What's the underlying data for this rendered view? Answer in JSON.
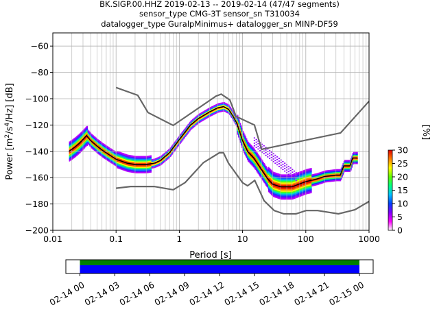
{
  "chart_data": {
    "type": "heatmap",
    "title_lines": [
      "BK.SIGP.00.HHZ   2019-02-13 -- 2019-02-14  (47/47 segments)",
      "sensor_type CMG-3T sensor_sn T310034",
      "datalogger_type GuralpMinimus+ datalogger_sn MINP-DF59"
    ],
    "xlabel": "Period [s]",
    "ylabel_parts": [
      "Power [m",
      "2",
      "/s",
      "4",
      "/Hz] [dB]"
    ],
    "x_scale": "log",
    "xlim": [
      0.01,
      1000
    ],
    "ylim": [
      -200,
      -50
    ],
    "x_ticks": [
      {
        "v": 0.01,
        "label": "0.01"
      },
      {
        "v": 0.1,
        "label": "0.1"
      },
      {
        "v": 1,
        "label": "1"
      },
      {
        "v": 10,
        "label": "10"
      },
      {
        "v": 100,
        "label": "100"
      },
      {
        "v": 1000,
        "label": "1000"
      }
    ],
    "y_ticks": [
      {
        "v": -60,
        "label": "−60"
      },
      {
        "v": -80,
        "label": "−80"
      },
      {
        "v": -100,
        "label": "−100"
      },
      {
        "v": -120,
        "label": "−120"
      },
      {
        "v": -140,
        "label": "−140"
      },
      {
        "v": -160,
        "label": "−160"
      },
      {
        "v": -180,
        "label": "−180"
      },
      {
        "v": -200,
        "label": "−200"
      }
    ],
    "grid": true,
    "noise_model_high": [
      [
        0.1,
        -91.5
      ],
      [
        0.22,
        -97.4
      ],
      [
        0.32,
        -110.5
      ],
      [
        0.8,
        -120.3
      ],
      [
        3.8,
        -98.0
      ],
      [
        4.6,
        -96.5
      ],
      [
        6.3,
        -101.0
      ],
      [
        7.9,
        -113.5
      ],
      [
        15.4,
        -120.0
      ],
      [
        20,
        -138.5
      ],
      [
        354.8,
        -126.0
      ],
      [
        10000,
        -48.5
      ]
    ],
    "noise_model_low": [
      [
        0.1,
        -168.0
      ],
      [
        0.17,
        -166.7
      ],
      [
        0.4,
        -166.7
      ],
      [
        0.8,
        -169.2
      ],
      [
        1.24,
        -163.7
      ],
      [
        2.4,
        -148.6
      ],
      [
        4.3,
        -141.1
      ],
      [
        5.0,
        -141.1
      ],
      [
        6.0,
        -149.0
      ],
      [
        10.0,
        -163.8
      ],
      [
        12.0,
        -166.2
      ],
      [
        15.6,
        -162.1
      ],
      [
        21.9,
        -177.5
      ],
      [
        31.6,
        -185.0
      ],
      [
        45,
        -187.5
      ],
      [
        70,
        -187.5
      ],
      [
        101,
        -185.0
      ],
      [
        154,
        -185.0
      ],
      [
        328,
        -187.5
      ],
      [
        600,
        -184.4
      ],
      [
        1000,
        -178.0
      ]
    ],
    "mode_curve": [
      [
        0.018,
        -140
      ],
      [
        0.022,
        -137
      ],
      [
        0.026,
        -134
      ],
      [
        0.03,
        -131
      ],
      [
        0.034,
        -128
      ],
      [
        0.04,
        -132
      ],
      [
        0.05,
        -136
      ],
      [
        0.06,
        -139
      ],
      [
        0.08,
        -143
      ],
      [
        0.1,
        -146
      ],
      [
        0.15,
        -149
      ],
      [
        0.2,
        -150
      ],
      [
        0.3,
        -150
      ],
      [
        0.4,
        -149
      ],
      [
        0.5,
        -147
      ],
      [
        0.7,
        -141
      ],
      [
        1.0,
        -131
      ],
      [
        1.5,
        -120
      ],
      [
        2.0,
        -115
      ],
      [
        3.0,
        -110
      ],
      [
        4.0,
        -107
      ],
      [
        5.0,
        -106
      ],
      [
        6.0,
        -108
      ],
      [
        7.0,
        -113
      ],
      [
        8.0,
        -118
      ],
      [
        10.0,
        -132
      ],
      [
        12.0,
        -140
      ],
      [
        15.0,
        -145
      ],
      [
        20.0,
        -154
      ],
      [
        25.0,
        -161
      ],
      [
        30.0,
        -165
      ],
      [
        40.0,
        -167
      ],
      [
        60.0,
        -167
      ],
      [
        100.0,
        -163
      ],
      [
        150.0,
        -161
      ],
      [
        200.0,
        -159
      ],
      [
        300.0,
        -158
      ],
      [
        350.0,
        -158
      ],
      [
        400.0,
        -151
      ],
      [
        500.0,
        -151
      ],
      [
        550.0,
        -145
      ],
      [
        650.0,
        -145
      ]
    ],
    "colorbar": {
      "label": "[%]",
      "min": 0,
      "max": 30,
      "ticks": [
        0,
        5,
        10,
        15,
        20,
        25,
        30
      ],
      "colors": [
        "#ffffff",
        "#ff00ff",
        "#8000ff",
        "#0040ff",
        "#00c0ff",
        "#00ff80",
        "#60ff00",
        "#ffff00",
        "#ff8000",
        "#e00000"
      ]
    },
    "timeline": {
      "x_ticks": [
        "02-14 00",
        "02-14 03",
        "02-14 06",
        "02-14 09",
        "02-14 12",
        "02-14 15",
        "02-14 18",
        "02-14 21",
        "02-15 00"
      ],
      "data_start_hour": 0,
      "data_end_hour": 24,
      "bar_colors": [
        "#008000",
        "#0000ff"
      ]
    }
  }
}
